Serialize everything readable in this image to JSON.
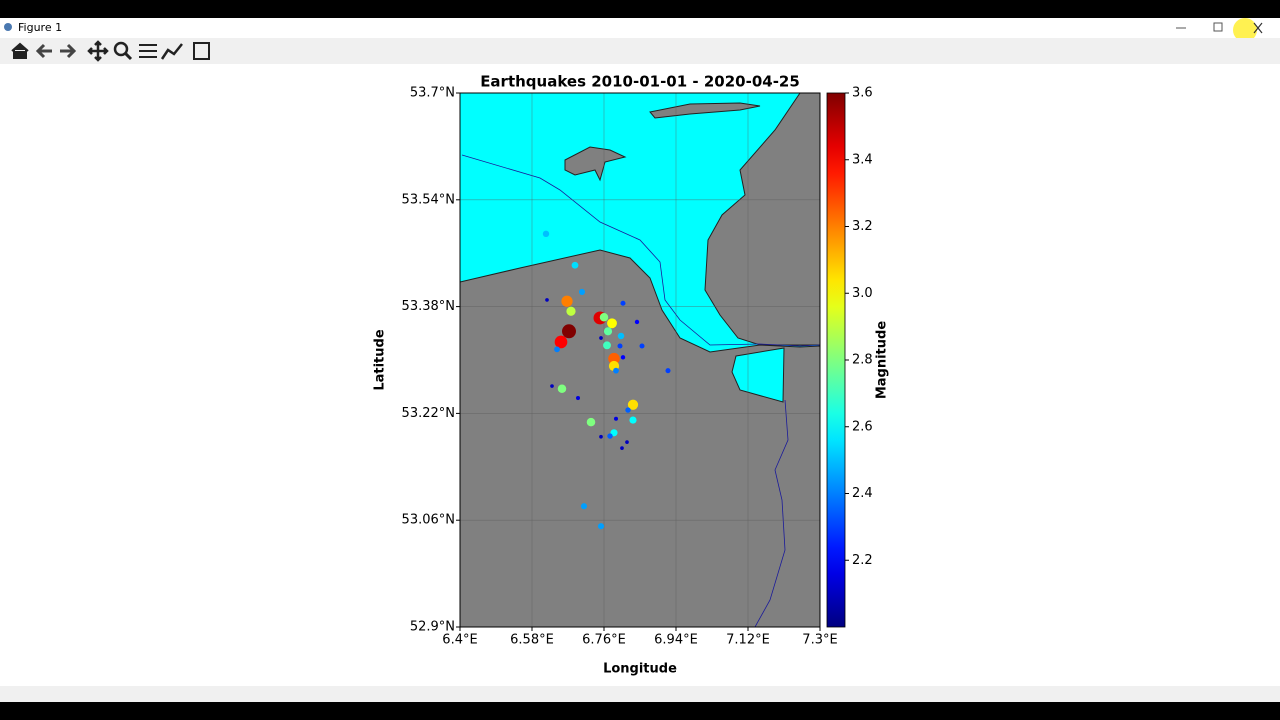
{
  "window_title": "Figure 1",
  "chart_data": {
    "type": "scatter",
    "title": "Earthquakes 2010-01-01 - 2020-04-25",
    "x_label": "Longitude",
    "y_label": "Latitude",
    "xlim": [
      6.4,
      7.3
    ],
    "ylim": [
      52.9,
      53.7
    ],
    "xticks": [
      {
        "value": 6.4,
        "label": "6.4°E"
      },
      {
        "value": 6.58,
        "label": "6.58°E"
      },
      {
        "value": 6.76,
        "label": "6.76°E"
      },
      {
        "value": 6.94,
        "label": "6.94°E"
      },
      {
        "value": 7.12,
        "label": "7.12°E"
      },
      {
        "value": 7.3,
        "label": "7.3°E"
      }
    ],
    "yticks": [
      {
        "value": 52.9,
        "label": "52.9°N"
      },
      {
        "value": 53.06,
        "label": "53.06°N"
      },
      {
        "value": 53.22,
        "label": "53.22°N"
      },
      {
        "value": 53.38,
        "label": "53.38°N"
      },
      {
        "value": 53.54,
        "label": "53.54°N"
      },
      {
        "value": 53.7,
        "label": "53.7°N"
      }
    ],
    "grid": true,
    "x": [
      6.615,
      6.6875,
      6.705,
      6.6675,
      6.6775,
      6.75,
      6.76,
      6.78,
      6.77,
      6.6725,
      6.6525,
      6.6425,
      6.7675,
      6.8025,
      6.8,
      6.785,
      6.785,
      6.79,
      6.855,
      6.8425,
      6.8075,
      6.92,
      6.655,
      6.63,
      6.695,
      6.6175,
      6.7275,
      6.8325,
      6.82,
      6.8325,
      6.785,
      6.775,
      6.79,
      6.7525,
      6.805,
      6.8175,
      6.71,
      6.7525,
      6.8075,
      6.7525
    ],
    "y": [
      53.489,
      53.442,
      53.402,
      53.388,
      53.373,
      53.363,
      53.364,
      53.355,
      53.343,
      53.343,
      53.327,
      53.316,
      53.322,
      53.336,
      53.321,
      53.302,
      53.291,
      53.284,
      53.321,
      53.357,
      53.385,
      53.284,
      53.257,
      53.261,
      53.243,
      53.39,
      53.207,
      53.233,
      53.225,
      53.21,
      53.191,
      53.186,
      53.212,
      53.185,
      53.168,
      53.177,
      53.081,
      53.051,
      53.304,
      53.333
    ],
    "magnitude": [
      2.5,
      2.55,
      2.45,
      3.2,
      2.9,
      3.45,
      2.8,
      3.0,
      2.75,
      3.6,
      3.4,
      2.4,
      2.7,
      2.5,
      2.3,
      3.25,
      3.05,
      2.4,
      2.3,
      2.2,
      2.3,
      2.3,
      2.8,
      2.1,
      2.15,
      2.1,
      2.8,
      3.05,
      2.35,
      2.6,
      2.6,
      2.35,
      2.15,
      2.1,
      2.1,
      2.1,
      2.45,
      2.45,
      2.2,
      2.1
    ],
    "colorbar": {
      "label": "Magnitude",
      "colormap": "jet",
      "lim": [
        2.0,
        3.6
      ],
      "ticks": [
        2.2,
        2.4,
        2.6,
        2.8,
        {
          "value": 3,
          "label": "3.0"
        },
        3.2,
        3.4,
        3.6
      ]
    }
  }
}
